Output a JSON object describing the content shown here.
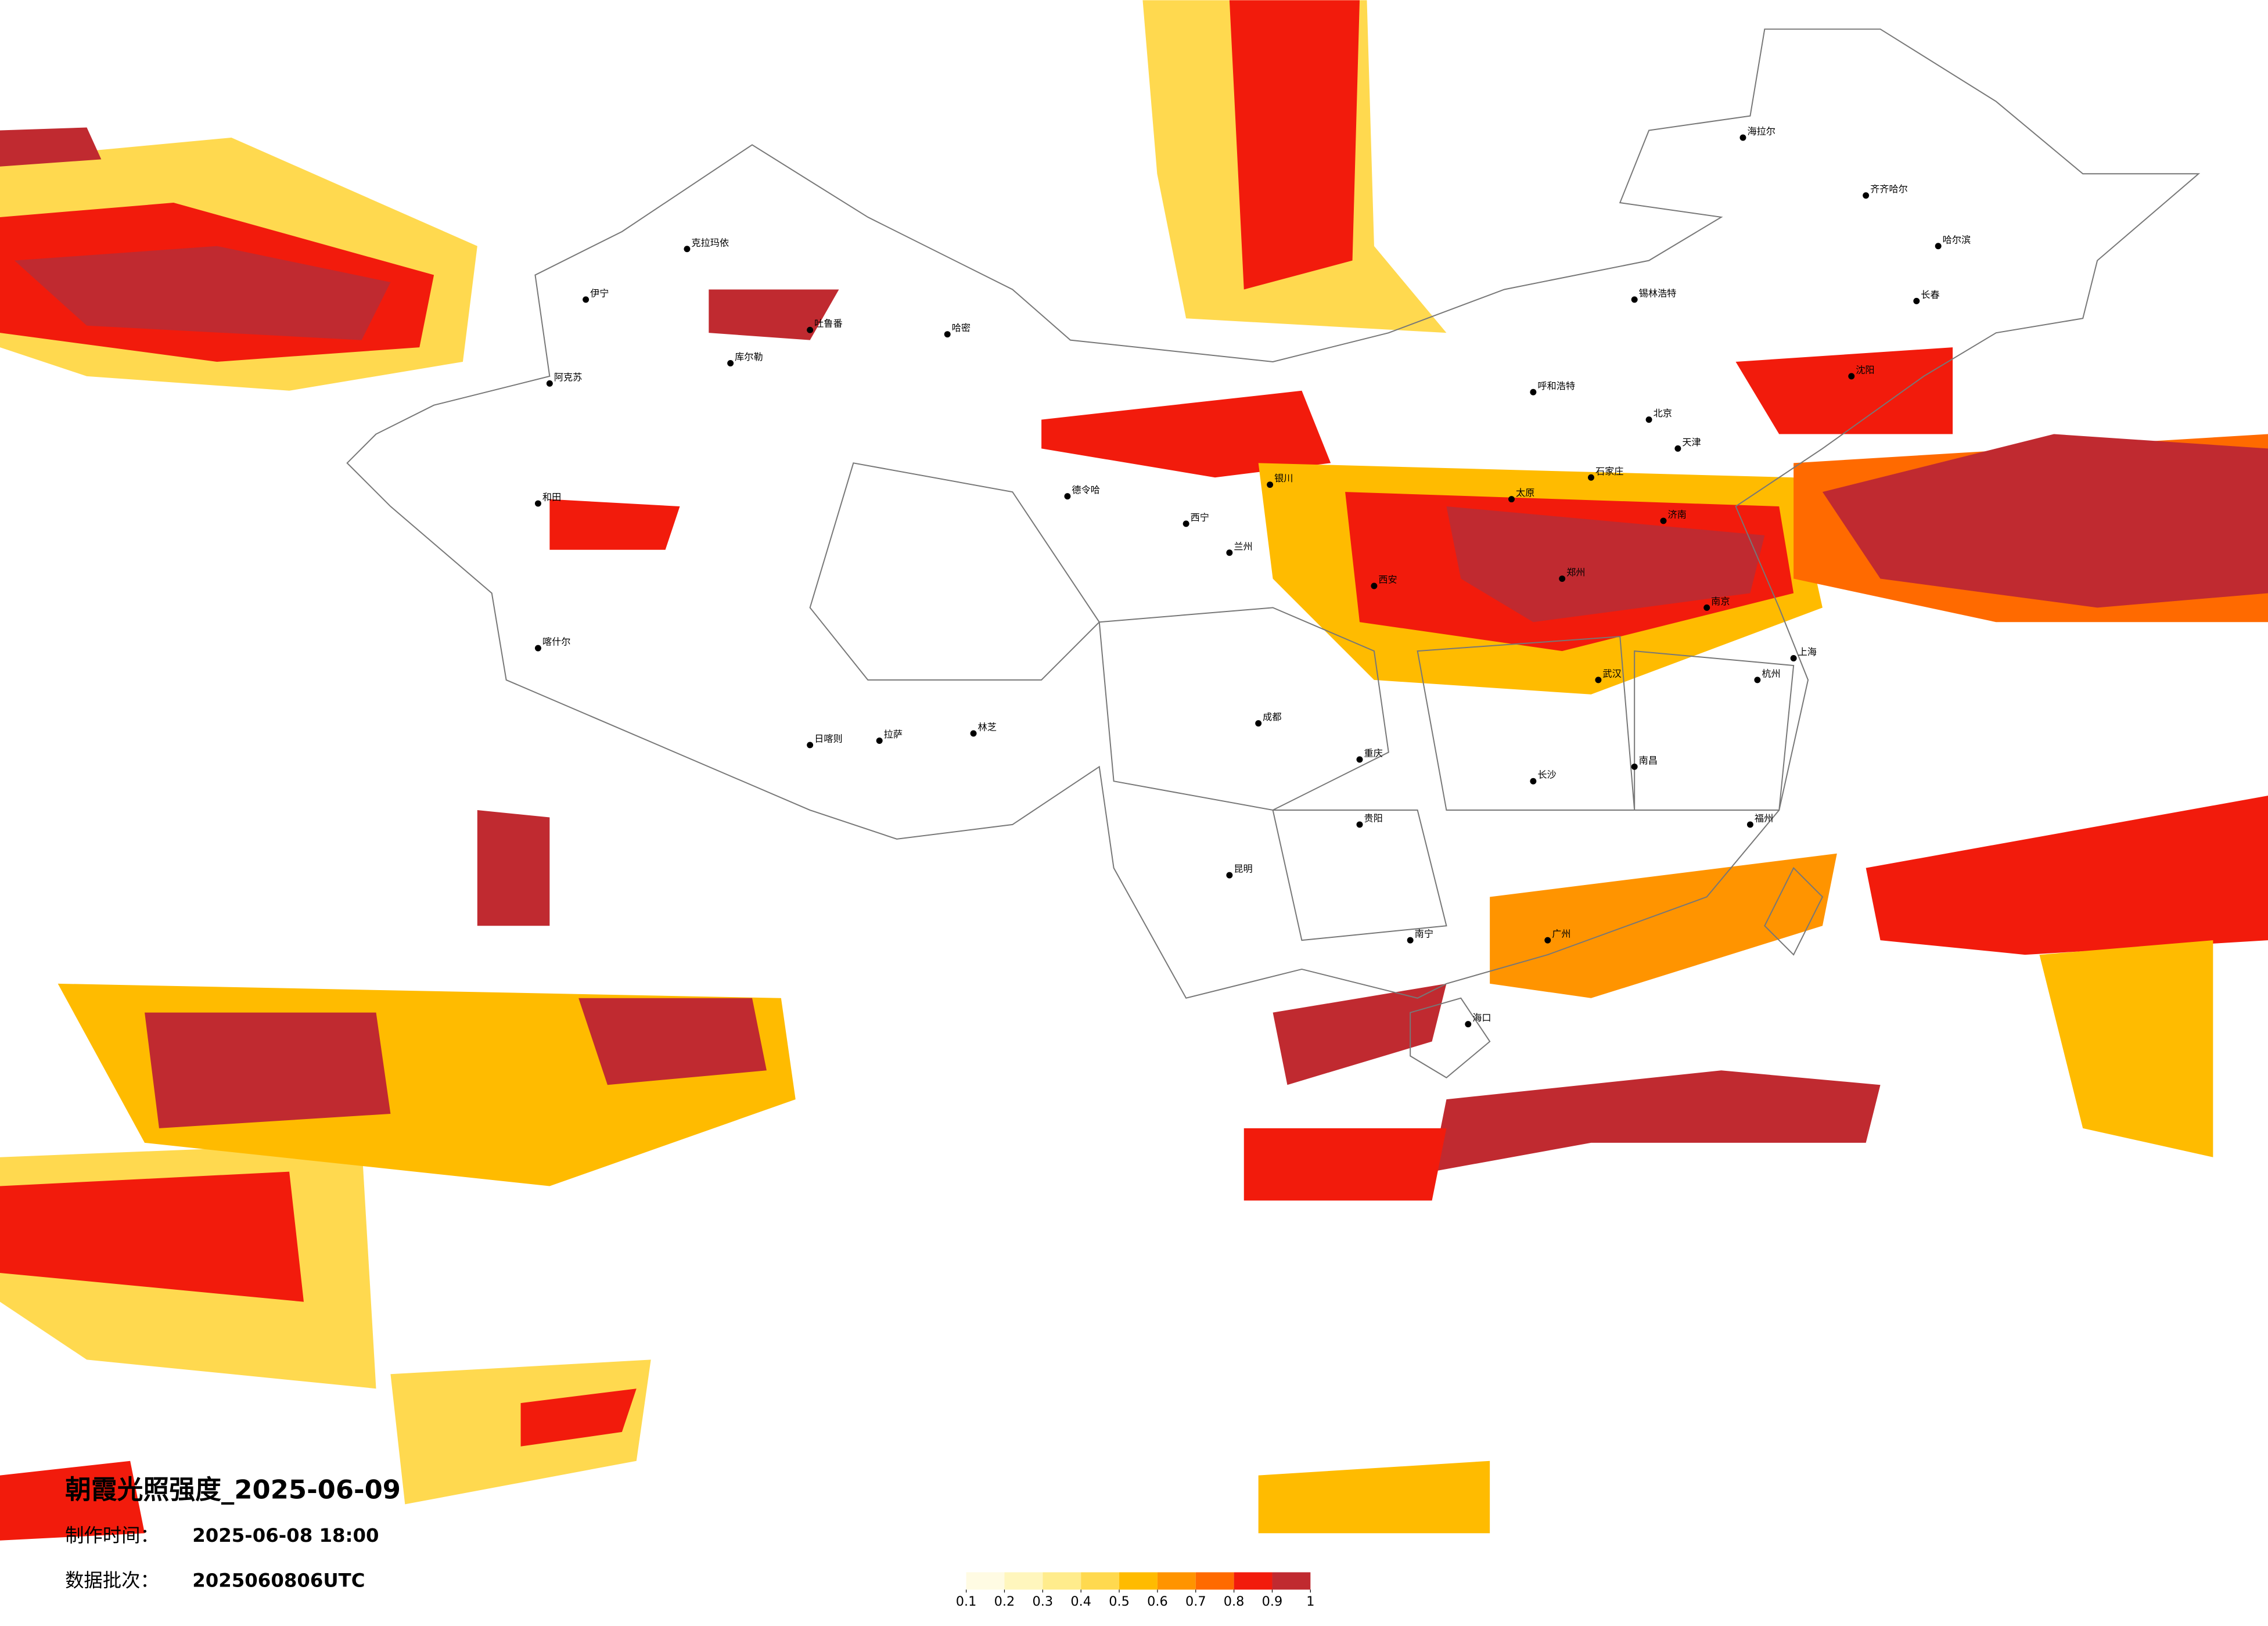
{
  "title": "朝霞光照强度_2025-06-09",
  "made_time_label": "制作时间：",
  "made_time": "2025-06-08 18:00",
  "batch_label": "数据批次：",
  "batch": "2025060806UTC",
  "legend": {
    "ticks": [
      0.1,
      0.2,
      0.3,
      0.4,
      0.5,
      0.6,
      0.7,
      0.8,
      0.9,
      1
    ],
    "colors": [
      "#fffbe3",
      "#fff6bd",
      "#ffec8c",
      "#ffd94f",
      "#ffbb00",
      "#ff9400",
      "#ff6a00",
      "#f21b0c",
      "#c02a30"
    ]
  },
  "cities": [
    "伊宁",
    "克拉玛依",
    "阿克苏",
    "和田",
    "吐鲁番",
    "库尔勒",
    "哈密",
    "德令哈",
    "拉萨",
    "日喀则",
    "林芝",
    "西宁",
    "兰州",
    "银川",
    "呼和浩特",
    "北京",
    "天津",
    "石家庄",
    "太原",
    "济南",
    "郑州",
    "西安",
    "成都",
    "重庆",
    "贵阳",
    "昆明",
    "南宁",
    "广州",
    "长沙",
    "武汉",
    "南京",
    "上海",
    "杭州",
    "福州",
    "南昌",
    "哈尔滨",
    "长春",
    "沈阳",
    "海口",
    "齐齐哈尔",
    "海拉尔",
    "锡林浩特",
    "喀什尔"
  ]
}
